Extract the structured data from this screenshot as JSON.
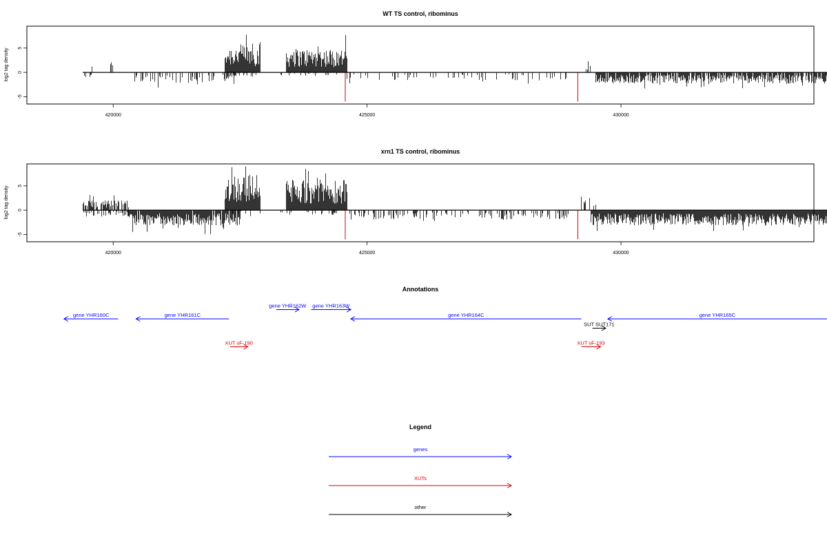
{
  "chart_data": [
    {
      "type": "bar",
      "title": "WT TS control, ribominus",
      "ylabel": "log2 tag density",
      "xlim": [
        418300,
        433800
      ],
      "ylim": [
        -6.5,
        9.5
      ],
      "x_ticks": [
        "420000",
        "425000",
        "430000"
      ],
      "y_ticks": [
        "-5",
        "0",
        "5"
      ],
      "axis_line": [
        419400,
        434400
      ],
      "series_profile": {
        "plus_segments": [
          {
            "start": 419500,
            "end": 419600,
            "mean": 0.8,
            "density": 0.3
          },
          {
            "start": 419900,
            "end": 420000,
            "mean": 1.5,
            "density": 0.3
          },
          {
            "start": 422200,
            "end": 422900,
            "mean": 3.5,
            "density": 1.0
          },
          {
            "start": 423400,
            "end": 424600,
            "mean": 3.0,
            "density": 1.0
          },
          {
            "start": 429300,
            "end": 429500,
            "mean": 1.5,
            "density": 0.3
          }
        ],
        "minus_segments": [
          {
            "start": 419400,
            "end": 419600,
            "mean": -0.6,
            "density": 0.3
          },
          {
            "start": 420400,
            "end": 422400,
            "mean": -1.3,
            "density": 0.35
          },
          {
            "start": 422300,
            "end": 422900,
            "mean": -0.6,
            "density": 0.2
          },
          {
            "start": 423300,
            "end": 424400,
            "mean": -0.5,
            "density": 0.2
          },
          {
            "start": 424600,
            "end": 429000,
            "mean": -1.0,
            "density": 0.13
          },
          {
            "start": 429500,
            "end": 434300,
            "mean": -1.4,
            "density": 0.85
          }
        ]
      },
      "highlight_bars": [
        {
          "x": 424570,
          "value": -6.0,
          "color": "#cc0000"
        },
        {
          "x": 429150,
          "value": -6.0,
          "color": "#cc0000"
        }
      ]
    },
    {
      "type": "bar",
      "title": "xrn1 TS control, ribominus",
      "ylabel": "log2 tag density",
      "xlim": [
        418300,
        433800
      ],
      "ylim": [
        -6.5,
        9.5
      ],
      "x_ticks": [
        "420000",
        "425000",
        "430000"
      ],
      "y_ticks": [
        "-5",
        "0",
        "5"
      ],
      "axis_line": [
        419400,
        434400
      ],
      "series_profile": {
        "plus_segments": [
          {
            "start": 419400,
            "end": 420300,
            "mean": 1.2,
            "density": 0.7
          },
          {
            "start": 422200,
            "end": 422900,
            "mean": 4.5,
            "density": 1.0
          },
          {
            "start": 423400,
            "end": 424600,
            "mean": 3.8,
            "density": 1.0
          },
          {
            "start": 429200,
            "end": 429500,
            "mean": 2.0,
            "density": 0.5
          }
        ],
        "minus_segments": [
          {
            "start": 419400,
            "end": 420300,
            "mean": -0.8,
            "density": 0.5
          },
          {
            "start": 420300,
            "end": 422500,
            "mean": -1.9,
            "density": 0.95
          },
          {
            "start": 422300,
            "end": 422900,
            "mean": -0.5,
            "density": 0.2
          },
          {
            "start": 423300,
            "end": 424400,
            "mean": -0.6,
            "density": 0.2
          },
          {
            "start": 424600,
            "end": 429000,
            "mean": -1.2,
            "density": 0.3
          },
          {
            "start": 429400,
            "end": 434300,
            "mean": -1.9,
            "density": 1.0
          }
        ]
      },
      "highlight_bars": [
        {
          "x": 424570,
          "value": -6.0,
          "color": "#cc0000"
        },
        {
          "x": 429150,
          "value": -6.0,
          "color": "#cc0000"
        }
      ]
    }
  ],
  "annotations": {
    "title": "Annotations",
    "features": [
      {
        "label": "gene YHR160C",
        "start": 419030,
        "end": 420100,
        "strand": "-",
        "type": "gene",
        "row": 0
      },
      {
        "label": "gene YHR161C",
        "start": 420450,
        "end": 422280,
        "strand": "-",
        "type": "gene",
        "row": 0
      },
      {
        "label": "gene YHR162W",
        "start": 423210,
        "end": 423660,
        "strand": "+",
        "type": "gene",
        "row": -1
      },
      {
        "label": "gene YHR163W",
        "start": 423900,
        "end": 424680,
        "strand": "+",
        "type": "gene",
        "row": -1
      },
      {
        "label": "gene YHR164C",
        "start": 424680,
        "end": 429220,
        "strand": "-",
        "type": "gene",
        "row": 0
      },
      {
        "label": "gene YHR165C",
        "start": 429740,
        "end": 434300,
        "strand": "-",
        "type": "gene",
        "row": 0
      },
      {
        "label": "SUT SUT171",
        "start": 429440,
        "end": 429700,
        "strand": "+",
        "type": "other",
        "row": 1
      },
      {
        "label": "XUT sF-190",
        "start": 422300,
        "end": 422650,
        "strand": "+",
        "type": "xut",
        "row": 3
      },
      {
        "label": "XUT sF-193",
        "start": 429220,
        "end": 429600,
        "strand": "+",
        "type": "xut",
        "row": 3
      }
    ]
  },
  "legend": {
    "title": "Legend",
    "items": [
      {
        "label": "genes",
        "color": "#0000ff"
      },
      {
        "label": "XUTs",
        "color": "#dd0000"
      },
      {
        "label": "other",
        "color": "#000000"
      }
    ]
  },
  "colors": {
    "gene": "#0000ff",
    "xut": "#dd0000",
    "other": "#000000",
    "bar": "#000000"
  }
}
